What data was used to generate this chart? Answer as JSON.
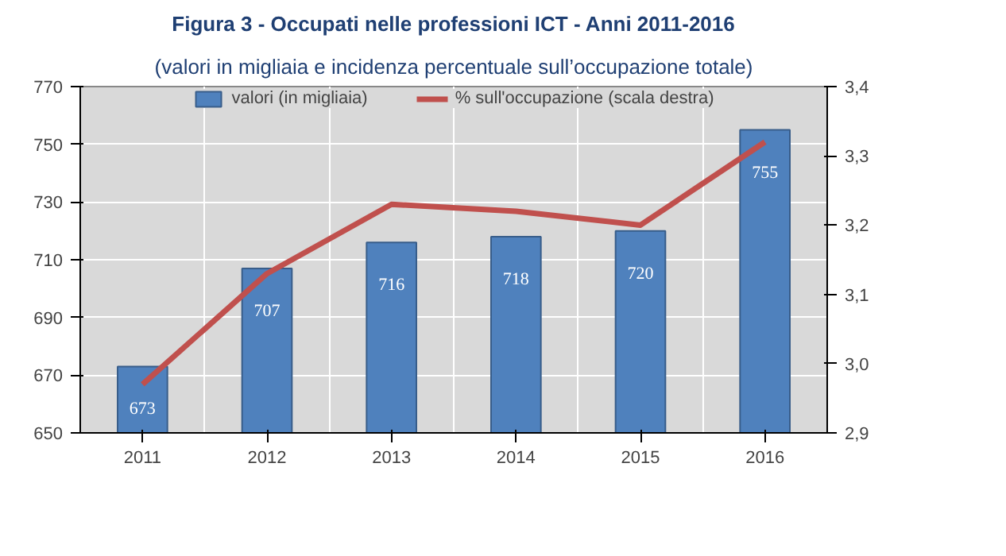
{
  "chart_data": {
    "type": "bar",
    "title": "Figura 3 - Occupati nelle professioni ICT - Anni 2011-2016",
    "subtitle": "(valori in migliaia e incidenza percentuale sull’occupazione totale)",
    "categories": [
      "2011",
      "2012",
      "2013",
      "2014",
      "2015",
      "2016"
    ],
    "series": [
      {
        "name": "valori (in migliaia)",
        "color": "#4f81bd",
        "values": [
          673,
          707,
          716,
          718,
          720,
          755
        ],
        "data_labels": true
      },
      {
        "name": "% sull'occupazione (scala destra)",
        "type": "line",
        "axis": "y2",
        "color": "#c0504d",
        "values": [
          2.97,
          3.13,
          3.23,
          3.22,
          3.2,
          3.32
        ]
      }
    ],
    "ylim": [
      650,
      770
    ],
    "yticks": [
      650,
      670,
      690,
      710,
      730,
      750,
      770
    ],
    "y2lim": [
      2.9,
      3.4
    ],
    "y2ticks": [
      {
        "value": 2.9,
        "label": "2,9"
      },
      {
        "value": 3.0,
        "label": "3,0"
      },
      {
        "value": 3.1,
        "label": "3,1"
      },
      {
        "value": 3.2,
        "label": "3,2"
      },
      {
        "value": 3.3,
        "label": "3,3"
      },
      {
        "value": 3.4,
        "label": "3,4"
      }
    ],
    "grid": true,
    "legend": "top",
    "marker": "none",
    "line_style": "solid"
  }
}
